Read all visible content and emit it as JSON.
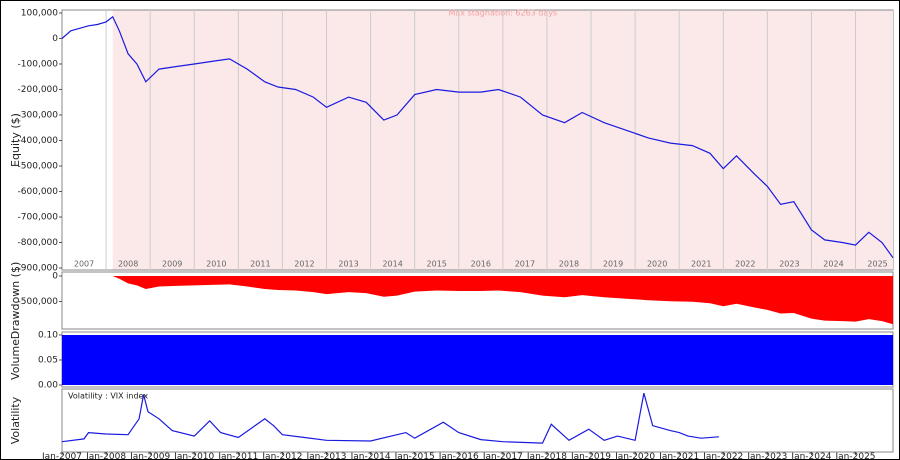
{
  "chart_data": [
    {
      "type": "line",
      "ylabel": "Equity ($)",
      "annotation": "Max stagnation: 6263 days",
      "stagnation_x": [
        2008.15,
        2025.85
      ],
      "xlim": [
        2007,
        2025.85
      ],
      "ylim": [
        -900000,
        100000
      ],
      "xticks": [
        {
          "value": 2007,
          "label": "2007"
        },
        {
          "value": 2008,
          "label": "2008"
        },
        {
          "value": 2009,
          "label": "2009"
        },
        {
          "value": 2010,
          "label": "2010"
        },
        {
          "value": 2011,
          "label": "2011"
        },
        {
          "value": 2012,
          "label": "2012"
        },
        {
          "value": 2013,
          "label": "2013"
        },
        {
          "value": 2014,
          "label": "2014"
        },
        {
          "value": 2015,
          "label": "2015"
        },
        {
          "value": 2016,
          "label": "2016"
        },
        {
          "value": 2017,
          "label": "2017"
        },
        {
          "value": 2018,
          "label": "2018"
        },
        {
          "value": 2019,
          "label": "2019"
        },
        {
          "value": 2020,
          "label": "2020"
        },
        {
          "value": 2021,
          "label": "2021"
        },
        {
          "value": 2022,
          "label": "2022"
        },
        {
          "value": 2023,
          "label": "2023"
        },
        {
          "value": 2024,
          "label": "2024"
        },
        {
          "value": 2025,
          "label": "2025"
        }
      ],
      "yticks": [
        {
          "value": 100000,
          "label": "100,000"
        },
        0,
        {
          "value": -100000,
          "label": "-100,000"
        },
        {
          "value": -200000,
          "label": "-200,000"
        },
        {
          "value": -300000,
          "label": "-300,000"
        },
        {
          "value": -400000,
          "label": "-400,000"
        },
        {
          "value": -500000,
          "label": "-500,000"
        },
        {
          "value": -600000,
          "label": "-600,000"
        },
        {
          "value": -700000,
          "label": "-700,000"
        },
        {
          "value": -800000,
          "label": "-800,000"
        },
        {
          "value": -900000,
          "label": "-900,000"
        }
      ],
      "x": [
        2007,
        2007.2,
        2007.4,
        2007.6,
        2007.8,
        2008.0,
        2008.15,
        2008.3,
        2008.5,
        2008.7,
        2008.9,
        2009.2,
        2009.6,
        2010.0,
        2010.4,
        2010.8,
        2011.2,
        2011.6,
        2011.9,
        2012.3,
        2012.7,
        2013.0,
        2013.5,
        2013.9,
        2014.3,
        2014.6,
        2015.0,
        2015.5,
        2016.0,
        2016.5,
        2016.9,
        2017.4,
        2017.9,
        2018.4,
        2018.8,
        2019.3,
        2019.8,
        2020.3,
        2020.8,
        2021.3,
        2021.7,
        2022.0,
        2022.3,
        2022.7,
        2023.0,
        2023.3,
        2023.6,
        2024.0,
        2024.3,
        2024.7,
        2025.0,
        2025.3,
        2025.6,
        2025.85
      ],
      "series": [
        {
          "color": "#1a1adf",
          "values": [
            0,
            30000,
            40000,
            50000,
            55000,
            65000,
            85000,
            30000,
            -60000,
            -100000,
            -170000,
            -120000,
            -110000,
            -100000,
            -90000,
            -80000,
            -120000,
            -170000,
            -190000,
            -200000,
            -230000,
            -270000,
            -230000,
            -250000,
            -320000,
            -300000,
            -220000,
            -200000,
            -210000,
            -210000,
            -200000,
            -230000,
            -300000,
            -330000,
            -290000,
            -330000,
            -360000,
            -390000,
            -410000,
            -420000,
            -450000,
            -510000,
            -460000,
            -530000,
            -580000,
            -650000,
            -640000,
            -750000,
            -790000,
            -800000,
            -810000,
            -760000,
            -800000,
            -860000
          ]
        }
      ]
    },
    {
      "type": "area",
      "ylabel": "Drawdown ($)",
      "xlim": [
        2007,
        2025.85
      ],
      "ylim": [
        -1000000,
        0
      ],
      "yticks": [
        0,
        {
          "value": -500000,
          "label": "-500,000"
        }
      ],
      "x": [
        2007,
        2007.2,
        2007.4,
        2007.6,
        2007.8,
        2008.0,
        2008.15,
        2008.3,
        2008.5,
        2008.7,
        2008.9,
        2009.2,
        2009.6,
        2010.0,
        2010.4,
        2010.8,
        2011.2,
        2011.6,
        2011.9,
        2012.3,
        2012.7,
        2013.0,
        2013.5,
        2013.9,
        2014.3,
        2014.6,
        2015.0,
        2015.5,
        2016.0,
        2016.5,
        2016.9,
        2017.4,
        2017.9,
        2018.4,
        2018.8,
        2019.3,
        2019.8,
        2020.3,
        2020.8,
        2021.3,
        2021.7,
        2022.0,
        2022.3,
        2022.7,
        2023.0,
        2023.3,
        2023.6,
        2024.0,
        2024.3,
        2024.7,
        2025.0,
        2025.3,
        2025.6,
        2025.85
      ],
      "series": [
        {
          "color": "#ff0000",
          "values": [
            0,
            0,
            0,
            0,
            0,
            0,
            0,
            -55000,
            -145000,
            -185000,
            -255000,
            -205000,
            -195000,
            -185000,
            -175000,
            -165000,
            -205000,
            -255000,
            -275000,
            -285000,
            -315000,
            -355000,
            -315000,
            -335000,
            -405000,
            -385000,
            -305000,
            -285000,
            -295000,
            -295000,
            -285000,
            -315000,
            -385000,
            -415000,
            -375000,
            -415000,
            -445000,
            -475000,
            -495000,
            -505000,
            -535000,
            -595000,
            -545000,
            -615000,
            -665000,
            -735000,
            -725000,
            -835000,
            -875000,
            -885000,
            -895000,
            -845000,
            -885000,
            -945000
          ]
        }
      ]
    },
    {
      "type": "area",
      "ylabel": "Volume",
      "xlim": [
        2007,
        2025.85
      ],
      "ylim": [
        0,
        0.1
      ],
      "yticks": [
        {
          "value": 0.1,
          "label": "0.10"
        },
        {
          "value": 0.05,
          "label": "0.05"
        },
        {
          "value": 0,
          "label": "0.00"
        }
      ],
      "x": [
        2007,
        2025.85
      ],
      "series": [
        {
          "color": "#0000ff",
          "values": [
            0.1,
            0.1
          ]
        }
      ]
    },
    {
      "type": "line",
      "ylabel": "Volatility",
      "xlim": [
        2007,
        2025.85
      ],
      "ylim": [
        0,
        85
      ],
      "xticks": [
        {
          "value": 2007,
          "label": "Jan-2007"
        },
        {
          "value": 2008,
          "label": "Jan-2008"
        },
        {
          "value": 2009,
          "label": "Jan-2009"
        },
        {
          "value": 2010,
          "label": "Jan-2010"
        },
        {
          "value": 2011,
          "label": "Jan-2011"
        },
        {
          "value": 2012,
          "label": "Jan-2012"
        },
        {
          "value": 2013,
          "label": "Jan-2013"
        },
        {
          "value": 2014,
          "label": "Jan-2014"
        },
        {
          "value": 2015,
          "label": "Jan-2015"
        },
        {
          "value": 2016,
          "label": "Jan-2016"
        },
        {
          "value": 2017,
          "label": "Jan-2017"
        },
        {
          "value": 2018,
          "label": "Jan-2018"
        },
        {
          "value": 2019,
          "label": "Jan-2019"
        },
        {
          "value": 2020,
          "label": "Jan-2020"
        },
        {
          "value": 2021,
          "label": "Jan-2021"
        },
        {
          "value": 2022,
          "label": "Jan-2022"
        },
        {
          "value": 2023,
          "label": "Jan-2023"
        },
        {
          "value": 2024,
          "label": "Jan-2024"
        },
        {
          "value": 2025,
          "label": "Jan-2025"
        }
      ],
      "x": [
        2007,
        2007.5,
        2007.6,
        2008,
        2008.5,
        2008.75,
        2008.85,
        2008.95,
        2009.2,
        2009.5,
        2010,
        2010.35,
        2010.6,
        2011,
        2011.6,
        2011.8,
        2012,
        2012.5,
        2013,
        2014,
        2014.8,
        2015,
        2015.65,
        2016,
        2016.5,
        2017,
        2017.9,
        2018.1,
        2018.5,
        2018.95,
        2019.3,
        2019.6,
        2020,
        2020.2,
        2020.4,
        2020.8,
        2021,
        2021.2,
        2021.5,
        2021.9
      ],
      "series": [
        {
          "name": "Volatility : VIX index",
          "color": "#1a1adf",
          "values": [
            12,
            16,
            25,
            23,
            22,
            45,
            80,
            55,
            45,
            28,
            20,
            42,
            25,
            18,
            45,
            35,
            22,
            18,
            14,
            13,
            25,
            17,
            40,
            25,
            15,
            12,
            10,
            37,
            14,
            30,
            14,
            20,
            14,
            82,
            35,
            28,
            25,
            20,
            17,
            19
          ]
        }
      ]
    }
  ]
}
